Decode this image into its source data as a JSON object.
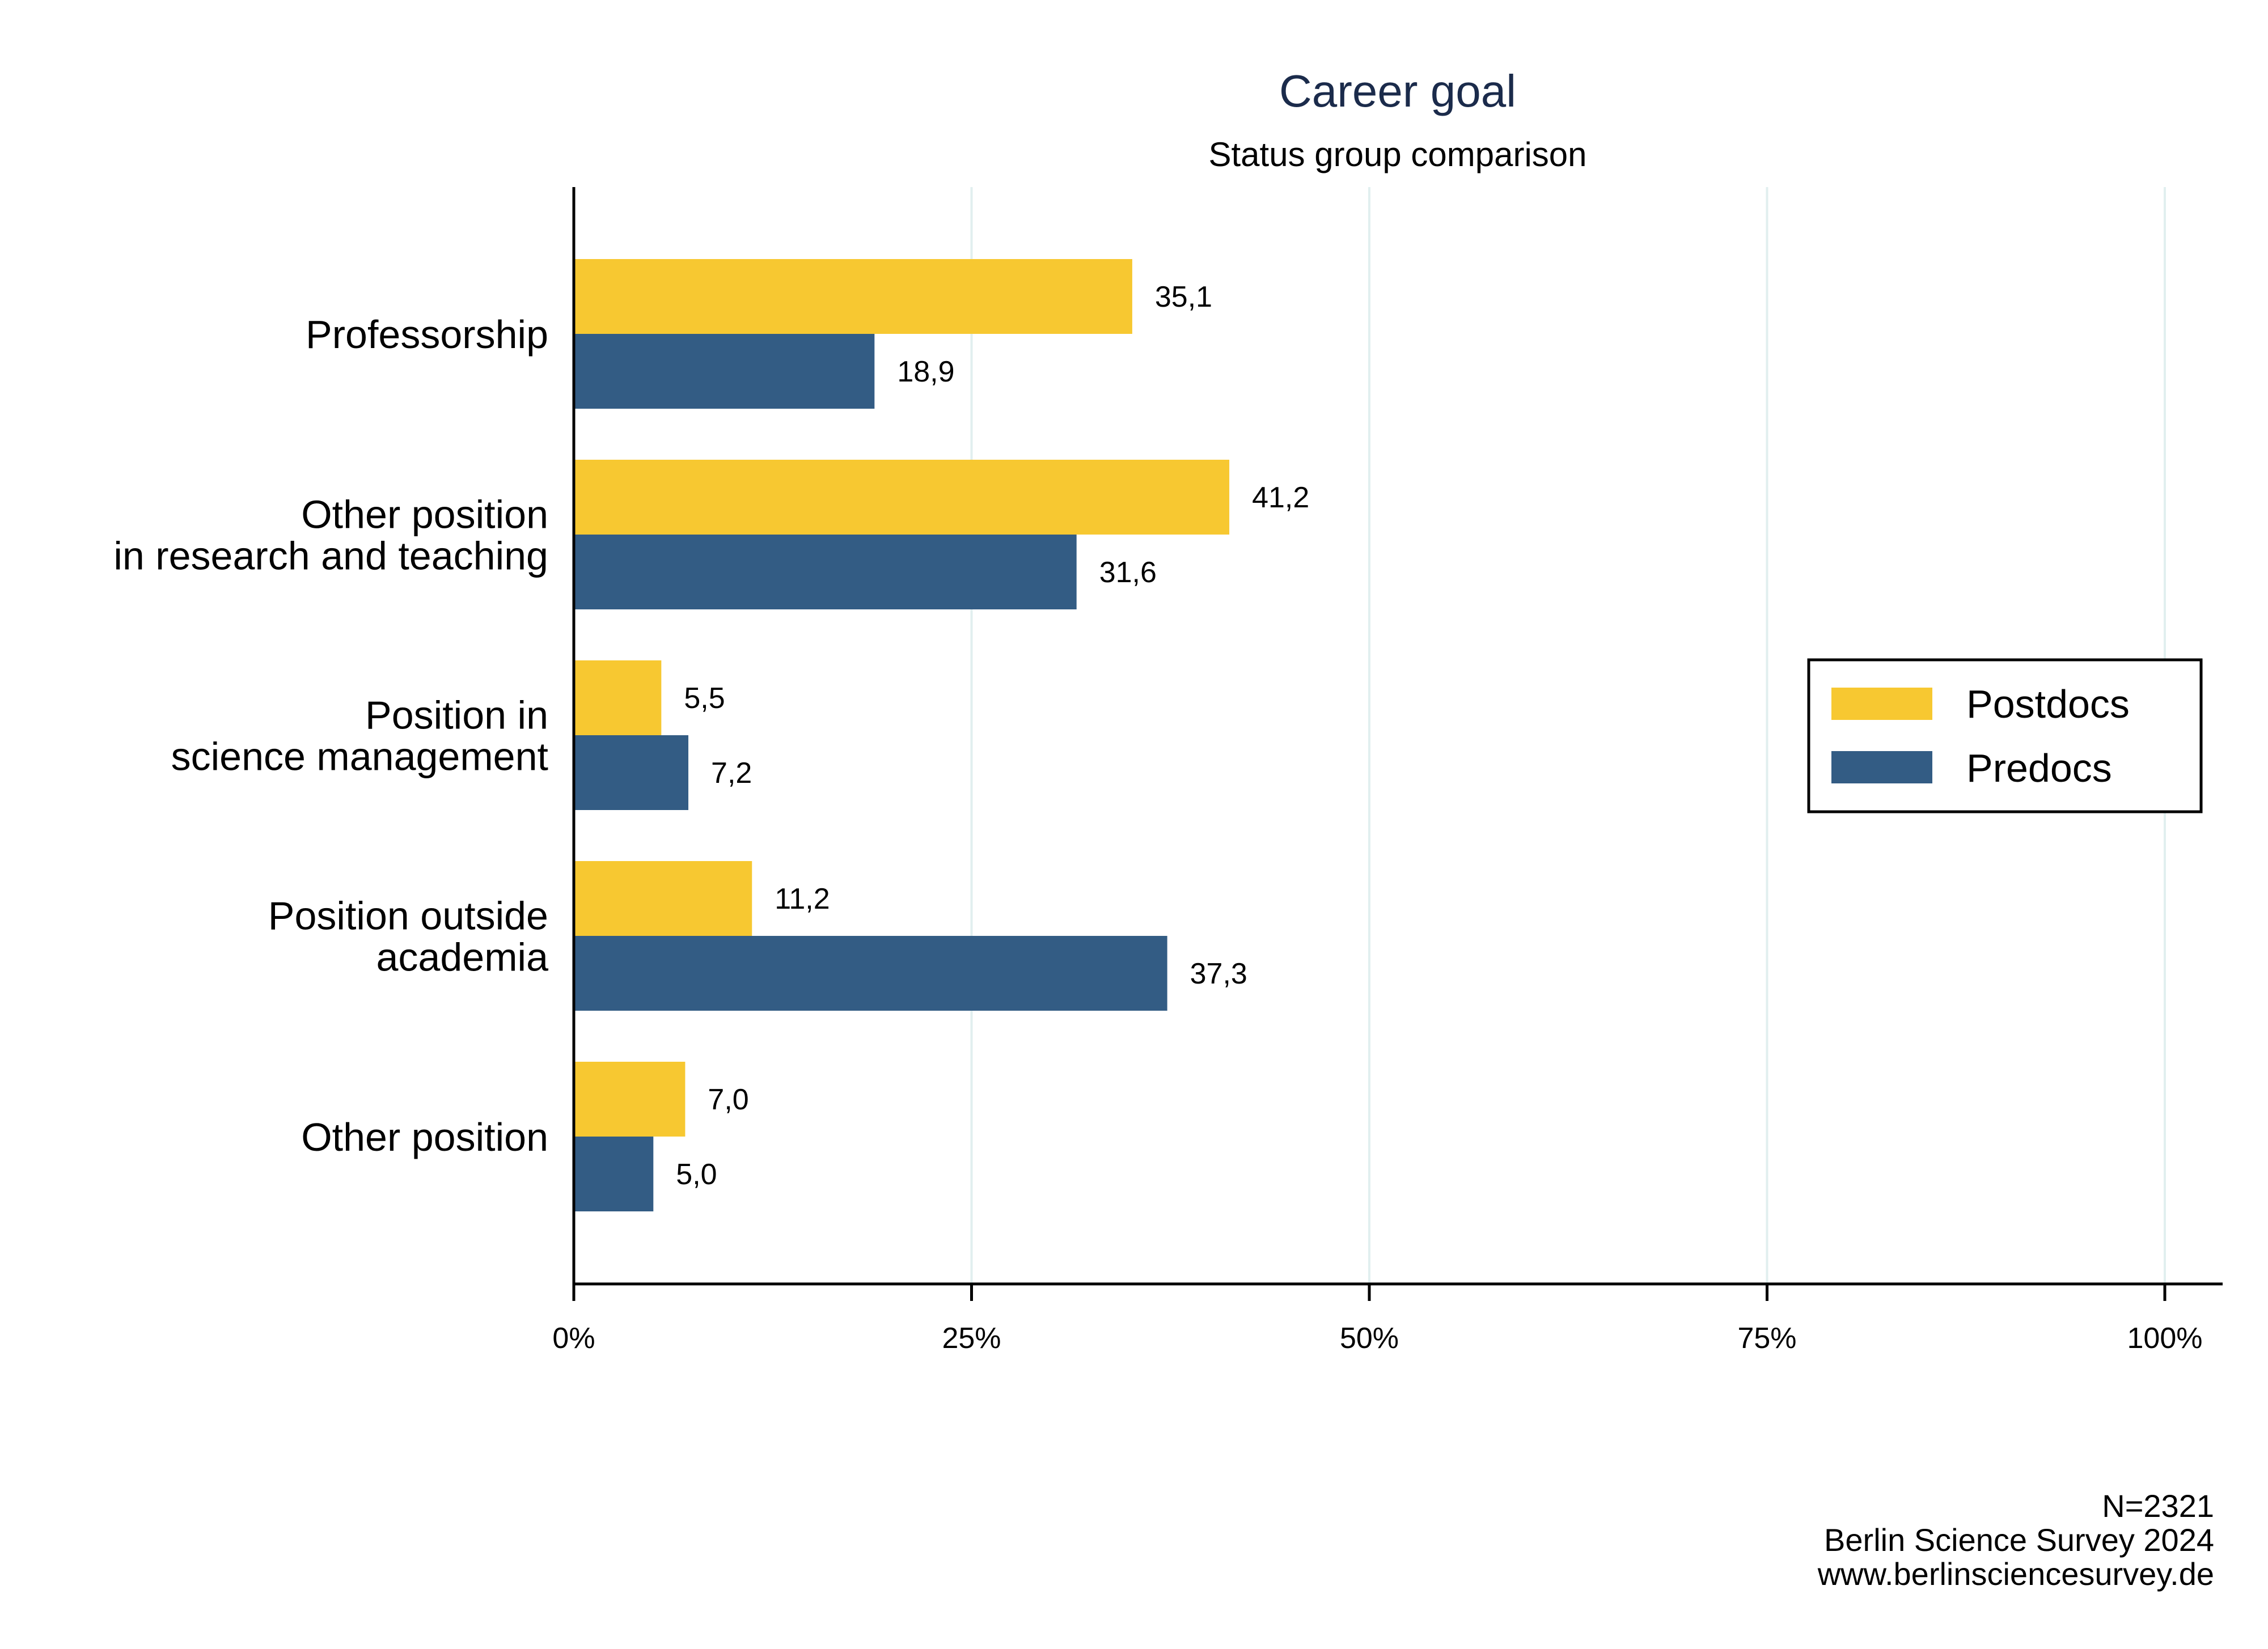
{
  "colors": {
    "postdocs": "#f7c831",
    "predocs": "#335c84",
    "grid": "#e1efef",
    "axis": "#000000",
    "title": "#1b2b4b"
  },
  "chart_data": {
    "type": "bar",
    "orientation": "horizontal",
    "title": "Career goal",
    "subtitle": "Status group comparison",
    "categories": [
      [
        "Professorship"
      ],
      [
        "Other position",
        "in research and teaching"
      ],
      [
        "Position in",
        "science management"
      ],
      [
        "Position outside",
        "academia"
      ],
      [
        "Other position"
      ]
    ],
    "series": [
      {
        "name": "Postdocs",
        "values": [
          35.1,
          41.2,
          5.5,
          11.2,
          7.0
        ],
        "labels": [
          "35,1",
          "41,2",
          "5,5",
          "11,2",
          "7,0"
        ]
      },
      {
        "name": "Predocs",
        "values": [
          18.9,
          31.6,
          7.2,
          37.3,
          5.0
        ],
        "labels": [
          "18,9",
          "31,6",
          "7,2",
          "37,3",
          "5,0"
        ]
      }
    ],
    "xlim": [
      0,
      100
    ],
    "xticks": [
      0,
      25,
      50,
      75,
      100
    ],
    "xtick_labels": [
      "0%",
      "25%",
      "50%",
      "75%",
      "100%"
    ],
    "grid": true,
    "legend_position": "right"
  },
  "notes": [
    "N=2321",
    "Berlin Science Survey 2024",
    "www.berlinsciencesurvey.de"
  ]
}
